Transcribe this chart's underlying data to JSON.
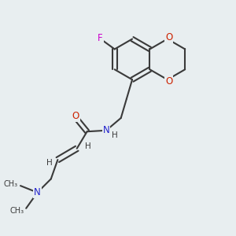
{
  "background_color": "#e8eef0",
  "bond_color": "#3a3a3a",
  "nitrogen_color": "#2222cc",
  "oxygen_color": "#cc2200",
  "fluorine_color": "#cc00cc",
  "bond_width": 1.5,
  "figsize": [
    3.0,
    3.0
  ],
  "dpi": 100,
  "xlim": [
    0,
    10
  ],
  "ylim": [
    0,
    10
  ]
}
